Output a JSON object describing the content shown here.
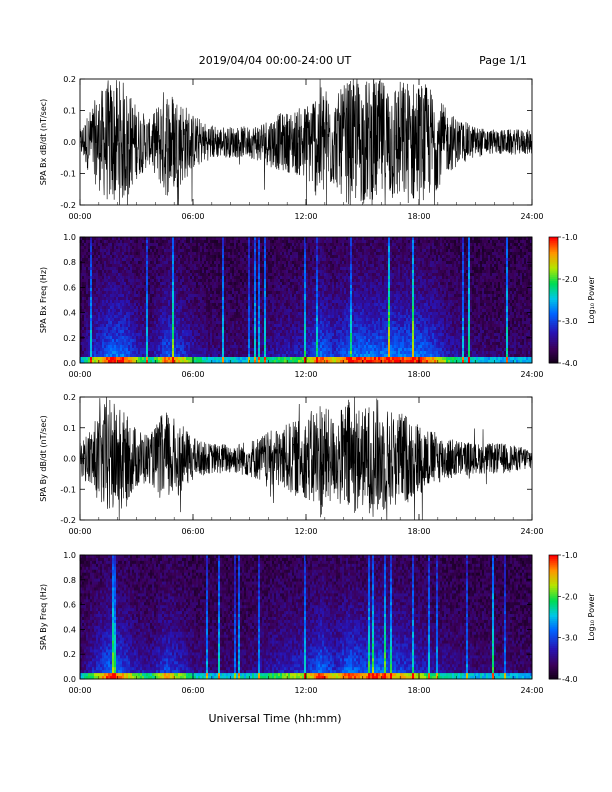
{
  "header": {
    "title": "2019/04/04  00:00-24:00 UT",
    "page": "Page 1/1"
  },
  "footer": {
    "xlabel": "Universal Time (hh:mm)"
  },
  "colorbar": {
    "label": "Log₁₀ Power",
    "ticks": [
      "-1.0",
      "-2.0",
      "-3.0",
      "-4.0"
    ],
    "range": [
      -4.0,
      -1.0
    ]
  },
  "chart_data": [
    {
      "type": "line",
      "series": [
        {
          "name": "SPA Bx dB/dt",
          "envelope": [
            0.04,
            0.13,
            0.2,
            0.2,
            0.12,
            0.07,
            0.18,
            0.15,
            0.09,
            0.06,
            0.05,
            0.05,
            0.05,
            0.07,
            0.09,
            0.1,
            0.12,
            0.2,
            0.14,
            0.2,
            0.2,
            0.2,
            0.2,
            0.2,
            0.2,
            0.17,
            0.1,
            0.07,
            0.05,
            0.04,
            0.04,
            0.04,
            0.04
          ]
        }
      ],
      "ylabel": "SPA Bx dB/dt (nT/sec)",
      "xlim": [
        0,
        24
      ],
      "ylim": [
        -0.2,
        0.2
      ],
      "yticks": [
        "0.2",
        "0.1",
        "0.0",
        "-0.1",
        "-0.2"
      ],
      "xticks": [
        "00:00",
        "06:00",
        "12:00",
        "18:00",
        "24:00"
      ]
    },
    {
      "type": "heatmap",
      "ylabel": "SPA Bx Freq (Hz)",
      "xlim": [
        0,
        24
      ],
      "ylim": [
        0.0,
        1.0
      ],
      "yticks": [
        "1.0",
        "0.8",
        "0.6",
        "0.4",
        "0.2",
        "0.0"
      ],
      "xticks": [
        "00:00",
        "06:00",
        "12:00",
        "18:00",
        "24:00"
      ],
      "zlim": [
        -4.0,
        -1.0
      ]
    },
    {
      "type": "line",
      "series": [
        {
          "name": "SPA By dB/dt",
          "envelope": [
            0.05,
            0.12,
            0.2,
            0.16,
            0.1,
            0.08,
            0.16,
            0.12,
            0.07,
            0.05,
            0.05,
            0.05,
            0.06,
            0.08,
            0.1,
            0.12,
            0.13,
            0.2,
            0.13,
            0.2,
            0.16,
            0.2,
            0.16,
            0.15,
            0.12,
            0.09,
            0.07,
            0.06,
            0.05,
            0.05,
            0.05,
            0.04,
            0.04
          ]
        }
      ],
      "ylabel": "SPA By dB/dt (nT/sec)",
      "xlim": [
        0,
        24
      ],
      "ylim": [
        -0.2,
        0.2
      ],
      "yticks": [
        "0.2",
        "0.1",
        "0.0",
        "-0.1",
        "-0.2"
      ],
      "xticks": [
        "00:00",
        "06:00",
        "12:00",
        "18:00",
        "24:00"
      ]
    },
    {
      "type": "heatmap",
      "ylabel": "SPA By Freq (Hz)",
      "xlim": [
        0,
        24
      ],
      "ylim": [
        0.0,
        1.0
      ],
      "yticks": [
        "1.0",
        "0.8",
        "0.6",
        "0.4",
        "0.2",
        "0.0"
      ],
      "xticks": [
        "00:00",
        "06:00",
        "12:00",
        "18:00",
        "24:00"
      ],
      "zlim": [
        -4.0,
        -1.0
      ]
    }
  ]
}
